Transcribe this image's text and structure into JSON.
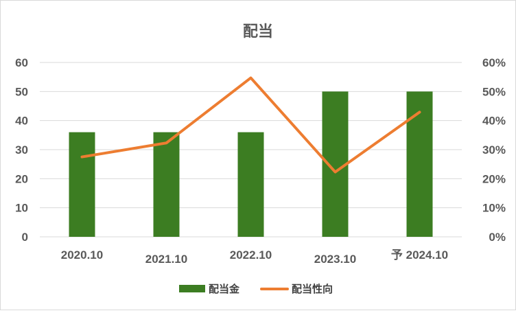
{
  "chart_data": {
    "type": "bar",
    "title": "配当",
    "categories": [
      "2020.10",
      "2021.10",
      "2022.10",
      "2023.10",
      "予 2024.10"
    ],
    "series": [
      {
        "name": "配当金",
        "kind": "bar",
        "axis": "left",
        "color": "#3c7d22",
        "values": [
          36,
          36,
          36,
          50,
          50
        ]
      },
      {
        "name": "配当性向",
        "kind": "line",
        "axis": "right",
        "color": "#ed7d31",
        "values": [
          27.5,
          32.3,
          54.7,
          22.3,
          42.9
        ]
      }
    ],
    "y_left": {
      "min": 0,
      "max": 60,
      "ticks": [
        "0",
        "10",
        "20",
        "30",
        "40",
        "50",
        "60"
      ]
    },
    "y_right": {
      "min": 0,
      "max": 60,
      "ticks": [
        "0%",
        "10%",
        "20%",
        "30%",
        "40%",
        "50%",
        "60%"
      ]
    },
    "grid": true,
    "legend_position": "bottom",
    "gridline_color": "#d9d9d9",
    "axis_text_color": "#595959"
  }
}
